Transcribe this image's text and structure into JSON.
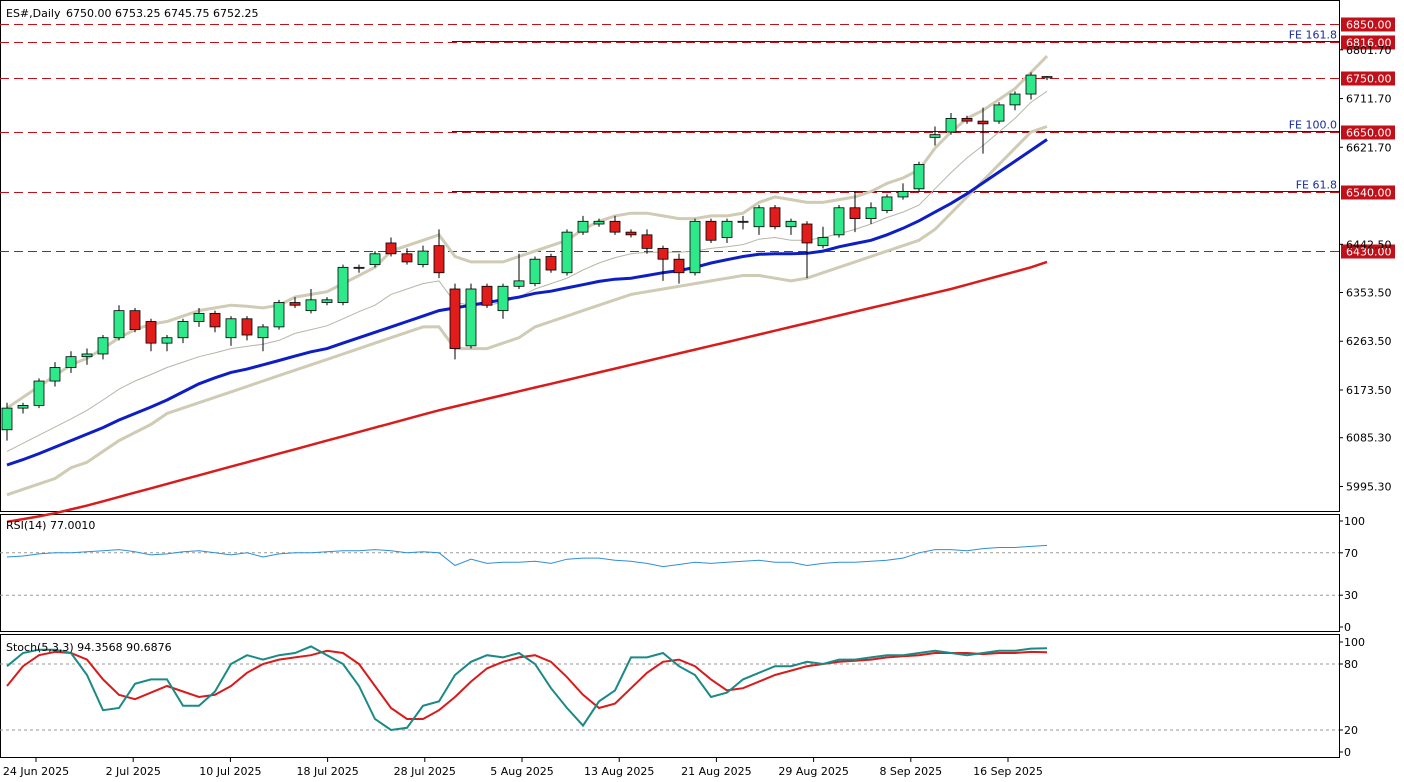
{
  "header": {
    "symbol": "ES#,Daily",
    "ohlc": "6750.00 6753.25 6745.75 6752.25"
  },
  "rsi_label": "RSI(14) 77.0010",
  "stoch_label": "Stoch(5,3,3) 94.3568 90.6876",
  "colors": {
    "bull": "#2ee88a",
    "bear": "#e21b1b",
    "bollinger": "#cfcbb4",
    "ma_fast": "#0d1fc4",
    "ma_slow": "#d81b1b",
    "level_line": "#c0101a",
    "fib_line": "#1a1a7a",
    "rsi_line": "#2f8fd8",
    "stoch_main": "#1a8a86",
    "stoch_signal": "#d81b1b"
  },
  "chart_data": [
    {
      "type": "candlestick",
      "title": "ES#,Daily",
      "ylim": [
        5950,
        6890
      ],
      "price_ticks": [
        "6801.70",
        "6711.70",
        "6621.70",
        "6442.50",
        "6353.50",
        "6263.50",
        "6173.50",
        "6085.30",
        "5995.30"
      ],
      "x_labels": [
        "24 Jun 2025",
        "2 Jul 2025",
        "10 Jul 2025",
        "18 Jul 2025",
        "28 Jul 2025",
        "5 Aug 2025",
        "13 Aug 2025",
        "21 Aug 2025",
        "29 Aug 2025",
        "8 Sep 2025",
        "16 Sep 2025"
      ],
      "levels": [
        {
          "price": 6850,
          "label": "6850.00"
        },
        {
          "price": 6816,
          "label": "6816.00",
          "fib": "FE 161.8"
        },
        {
          "price": 6750,
          "label": "6750.00"
        },
        {
          "price": 6650,
          "label": "6650.00",
          "fib": "FE 100.0"
        },
        {
          "price": 6540,
          "label": "6540.00",
          "fib": "FE 61.8"
        },
        {
          "price": 6430,
          "label": "6430.00"
        }
      ],
      "candles": [
        {
          "o": 6100,
          "h": 6150,
          "l": 6080,
          "c": 6140
        },
        {
          "o": 6140,
          "h": 6150,
          "l": 6130,
          "c": 6145
        },
        {
          "o": 6145,
          "h": 6195,
          "l": 6140,
          "c": 6190
        },
        {
          "o": 6190,
          "h": 6225,
          "l": 6180,
          "c": 6215
        },
        {
          "o": 6215,
          "h": 6245,
          "l": 6205,
          "c": 6235
        },
        {
          "o": 6235,
          "h": 6250,
          "l": 6220,
          "c": 6240
        },
        {
          "o": 6240,
          "h": 6275,
          "l": 6230,
          "c": 6270
        },
        {
          "o": 6270,
          "h": 6330,
          "l": 6265,
          "c": 6320
        },
        {
          "o": 6320,
          "h": 6325,
          "l": 6280,
          "c": 6285
        },
        {
          "o": 6300,
          "h": 6305,
          "l": 6245,
          "c": 6260
        },
        {
          "o": 6260,
          "h": 6275,
          "l": 6245,
          "c": 6270
        },
        {
          "o": 6270,
          "h": 6305,
          "l": 6260,
          "c": 6300
        },
        {
          "o": 6300,
          "h": 6325,
          "l": 6290,
          "c": 6315
        },
        {
          "o": 6315,
          "h": 6320,
          "l": 6280,
          "c": 6290
        },
        {
          "o": 6270,
          "h": 6310,
          "l": 6255,
          "c": 6305
        },
        {
          "o": 6305,
          "h": 6310,
          "l": 6265,
          "c": 6275
        },
        {
          "o": 6270,
          "h": 6295,
          "l": 6245,
          "c": 6290
        },
        {
          "o": 6290,
          "h": 6340,
          "l": 6285,
          "c": 6335
        },
        {
          "o": 6335,
          "h": 6345,
          "l": 6325,
          "c": 6330
        },
        {
          "o": 6320,
          "h": 6360,
          "l": 6315,
          "c": 6340
        },
        {
          "o": 6335,
          "h": 6345,
          "l": 6330,
          "c": 6340
        },
        {
          "o": 6335,
          "h": 6405,
          "l": 6330,
          "c": 6400
        },
        {
          "o": 6400,
          "h": 6405,
          "l": 6390,
          "c": 6400
        },
        {
          "o": 6405,
          "h": 6430,
          "l": 6400,
          "c": 6425
        },
        {
          "o": 6445,
          "h": 6455,
          "l": 6420,
          "c": 6425
        },
        {
          "o": 6425,
          "h": 6435,
          "l": 6405,
          "c": 6410
        },
        {
          "o": 6405,
          "h": 6440,
          "l": 6400,
          "c": 6430
        },
        {
          "o": 6440,
          "h": 6470,
          "l": 6380,
          "c": 6390
        },
        {
          "o": 6360,
          "h": 6370,
          "l": 6230,
          "c": 6250
        },
        {
          "o": 6255,
          "h": 6370,
          "l": 6250,
          "c": 6360
        },
        {
          "o": 6365,
          "h": 6370,
          "l": 6325,
          "c": 6330
        },
        {
          "o": 6320,
          "h": 6370,
          "l": 6305,
          "c": 6365
        },
        {
          "o": 6365,
          "h": 6425,
          "l": 6360,
          "c": 6375
        },
        {
          "o": 6370,
          "h": 6420,
          "l": 6365,
          "c": 6415
        },
        {
          "o": 6420,
          "h": 6425,
          "l": 6390,
          "c": 6395
        },
        {
          "o": 6390,
          "h": 6470,
          "l": 6385,
          "c": 6465
        },
        {
          "o": 6465,
          "h": 6495,
          "l": 6460,
          "c": 6485
        },
        {
          "o": 6480,
          "h": 6490,
          "l": 6475,
          "c": 6485
        },
        {
          "o": 6485,
          "h": 6495,
          "l": 6460,
          "c": 6465
        },
        {
          "o": 6465,
          "h": 6470,
          "l": 6455,
          "c": 6460
        },
        {
          "o": 6460,
          "h": 6470,
          "l": 6425,
          "c": 6435
        },
        {
          "o": 6435,
          "h": 6440,
          "l": 6375,
          "c": 6415
        },
        {
          "o": 6415,
          "h": 6425,
          "l": 6370,
          "c": 6390
        },
        {
          "o": 6390,
          "h": 6490,
          "l": 6385,
          "c": 6485
        },
        {
          "o": 6485,
          "h": 6490,
          "l": 6445,
          "c": 6450
        },
        {
          "o": 6455,
          "h": 6490,
          "l": 6445,
          "c": 6485
        },
        {
          "o": 6485,
          "h": 6495,
          "l": 6470,
          "c": 6485
        },
        {
          "o": 6475,
          "h": 6515,
          "l": 6460,
          "c": 6510
        },
        {
          "o": 6510,
          "h": 6515,
          "l": 6470,
          "c": 6475
        },
        {
          "o": 6475,
          "h": 6490,
          "l": 6460,
          "c": 6485
        },
        {
          "o": 6480,
          "h": 6485,
          "l": 6380,
          "c": 6445
        },
        {
          "o": 6440,
          "h": 6475,
          "l": 6435,
          "c": 6455
        },
        {
          "o": 6460,
          "h": 6515,
          "l": 6455,
          "c": 6510
        },
        {
          "o": 6510,
          "h": 6540,
          "l": 6465,
          "c": 6490
        },
        {
          "o": 6490,
          "h": 6520,
          "l": 6480,
          "c": 6510
        },
        {
          "o": 6505,
          "h": 6535,
          "l": 6500,
          "c": 6530
        },
        {
          "o": 6530,
          "h": 6555,
          "l": 6525,
          "c": 6540
        },
        {
          "o": 6545,
          "h": 6595,
          "l": 6540,
          "c": 6590
        },
        {
          "o": 6640,
          "h": 6660,
          "l": 6625,
          "c": 6645
        },
        {
          "o": 6650,
          "h": 6685,
          "l": 6645,
          "c": 6675
        },
        {
          "o": 6675,
          "h": 6680,
          "l": 6665,
          "c": 6670
        },
        {
          "o": 6670,
          "h": 6695,
          "l": 6610,
          "c": 6665
        },
        {
          "o": 6670,
          "h": 6705,
          "l": 6665,
          "c": 6700
        },
        {
          "o": 6700,
          "h": 6725,
          "l": 6690,
          "c": 6720
        },
        {
          "o": 6720,
          "h": 6760,
          "l": 6710,
          "c": 6755
        },
        {
          "o": 6750,
          "h": 6753.25,
          "l": 6745.75,
          "c": 6752.25
        }
      ],
      "ma_fast": [
        6035,
        6045,
        6056,
        6068,
        6080,
        6092,
        6104,
        6118,
        6130,
        6142,
        6155,
        6170,
        6185,
        6196,
        6206,
        6212,
        6220,
        6228,
        6236,
        6244,
        6250,
        6260,
        6270,
        6280,
        6290,
        6300,
        6310,
        6320,
        6325,
        6330,
        6335,
        6340,
        6345,
        6352,
        6356,
        6362,
        6368,
        6374,
        6378,
        6380,
        6385,
        6390,
        6394,
        6400,
        6408,
        6414,
        6420,
        6424,
        6425,
        6425,
        6426,
        6430,
        6438,
        6444,
        6450,
        6460,
        6472,
        6486,
        6502,
        6518,
        6536,
        6556,
        6576,
        6596,
        6616,
        6636
      ],
      "ma_slow": [
        5930,
        5935,
        5940,
        5946,
        5953,
        5960,
        5968,
        5976,
        5984,
        5992,
        6000,
        6008,
        6016,
        6024,
        6032,
        6040,
        6048,
        6056,
        6064,
        6072,
        6080,
        6088,
        6096,
        6104,
        6112,
        6120,
        6128,
        6136,
        6143,
        6150,
        6157,
        6164,
        6171,
        6178,
        6185,
        6192,
        6199,
        6206,
        6213,
        6220,
        6227,
        6234,
        6241,
        6248,
        6255,
        6262,
        6269,
        6276,
        6283,
        6290,
        6297,
        6304,
        6311,
        6318,
        6325,
        6332,
        6339,
        6346,
        6353,
        6360,
        6368,
        6376,
        6384,
        6392,
        6400,
        6410
      ],
      "bb_upper": [
        6140,
        6160,
        6180,
        6200,
        6220,
        6232,
        6250,
        6270,
        6285,
        6295,
        6300,
        6310,
        6320,
        6325,
        6330,
        6328,
        6325,
        6330,
        6345,
        6350,
        6355,
        6370,
        6385,
        6400,
        6430,
        6440,
        6450,
        6460,
        6420,
        6410,
        6410,
        6410,
        6420,
        6430,
        6440,
        6450,
        6470,
        6485,
        6495,
        6500,
        6500,
        6495,
        6490,
        6490,
        6495,
        6495,
        6500,
        6520,
        6530,
        6525,
        6520,
        6520,
        6525,
        6530,
        6540,
        6555,
        6565,
        6580,
        6620,
        6650,
        6675,
        6690,
        6710,
        6730,
        6760,
        6790
      ],
      "bb_lower": [
        5980,
        5990,
        6000,
        6010,
        6030,
        6040,
        6060,
        6080,
        6095,
        6110,
        6130,
        6140,
        6150,
        6160,
        6170,
        6180,
        6190,
        6200,
        6210,
        6220,
        6230,
        6240,
        6250,
        6260,
        6270,
        6280,
        6290,
        6290,
        6250,
        6250,
        6250,
        6260,
        6270,
        6290,
        6300,
        6310,
        6320,
        6330,
        6340,
        6350,
        6355,
        6360,
        6365,
        6370,
        6375,
        6380,
        6385,
        6385,
        6380,
        6375,
        6380,
        6390,
        6400,
        6410,
        6420,
        6430,
        6440,
        6450,
        6470,
        6500,
        6530,
        6560,
        6590,
        6620,
        6650,
        6660
      ],
      "bb_mid": [
        6060,
        6075,
        6090,
        6105,
        6120,
        6136,
        6155,
        6175,
        6190,
        6202,
        6215,
        6225,
        6235,
        6242,
        6250,
        6254,
        6258,
        6265,
        6278,
        6285,
        6292,
        6305,
        6318,
        6330,
        6350,
        6360,
        6370,
        6375,
        6335,
        6330,
        6330,
        6335,
        6345,
        6360,
        6370,
        6380,
        6395,
        6408,
        6418,
        6425,
        6428,
        6428,
        6428,
        6430,
        6435,
        6438,
        6442,
        6452,
        6455,
        6450,
        6450,
        6455,
        6462,
        6470,
        6480,
        6492,
        6502,
        6515,
        6545,
        6575,
        6602,
        6625,
        6650,
        6675,
        6705,
        6725
      ]
    },
    {
      "type": "line",
      "title": "RSI(14) 77.0010",
      "ylim": [
        0,
        100
      ],
      "y_ticks": [
        "100",
        "70",
        "30",
        "0"
      ],
      "levels": [
        70,
        30
      ],
      "series": [
        {
          "name": "RSI(14)",
          "values": [
            66,
            67,
            69,
            70,
            70,
            71,
            72,
            73,
            71,
            68,
            69,
            71,
            72,
            70,
            68,
            70,
            66,
            69,
            70,
            70,
            71,
            72,
            72,
            73,
            72,
            70,
            71,
            70,
            58,
            64,
            60,
            61,
            61,
            62,
            60,
            64,
            65,
            65,
            63,
            62,
            60,
            57,
            59,
            61,
            60,
            61,
            62,
            63,
            61,
            61,
            58,
            60,
            61,
            61,
            62,
            63,
            65,
            70,
            73,
            73,
            72,
            74,
            75,
            75,
            76,
            77
          ]
        }
      ]
    },
    {
      "type": "line",
      "title": "Stoch(5,3,3) 94.3568 90.6876",
      "ylim": [
        0,
        100
      ],
      "y_ticks": [
        "100",
        "80",
        "20",
        "0"
      ],
      "levels": [
        80,
        20
      ],
      "series": [
        {
          "name": "main",
          "values": [
            78,
            90,
            93,
            93,
            90,
            70,
            38,
            40,
            62,
            66,
            66,
            42,
            42,
            55,
            80,
            88,
            84,
            88,
            90,
            96,
            88,
            80,
            60,
            30,
            20,
            22,
            42,
            46,
            70,
            82,
            88,
            86,
            90,
            80,
            58,
            40,
            24,
            46,
            56,
            86,
            86,
            90,
            78,
            70,
            50,
            54,
            66,
            72,
            78,
            78,
            82,
            80,
            84,
            84,
            86,
            88,
            88,
            90,
            92,
            90,
            88,
            90,
            92,
            92,
            94,
            94.3568
          ]
        },
        {
          "name": "signal",
          "values": [
            60,
            78,
            88,
            91,
            90,
            84,
            66,
            52,
            48,
            54,
            60,
            55,
            50,
            52,
            60,
            72,
            80,
            84,
            86,
            88,
            92,
            90,
            80,
            60,
            40,
            30,
            30,
            38,
            50,
            64,
            76,
            82,
            86,
            88,
            82,
            68,
            52,
            40,
            44,
            58,
            72,
            82,
            84,
            78,
            66,
            56,
            58,
            64,
            70,
            74,
            78,
            80,
            82,
            83,
            84,
            86,
            87,
            88,
            90,
            90,
            90,
            89,
            90,
            90,
            91,
            90.6876
          ]
        }
      ]
    }
  ]
}
